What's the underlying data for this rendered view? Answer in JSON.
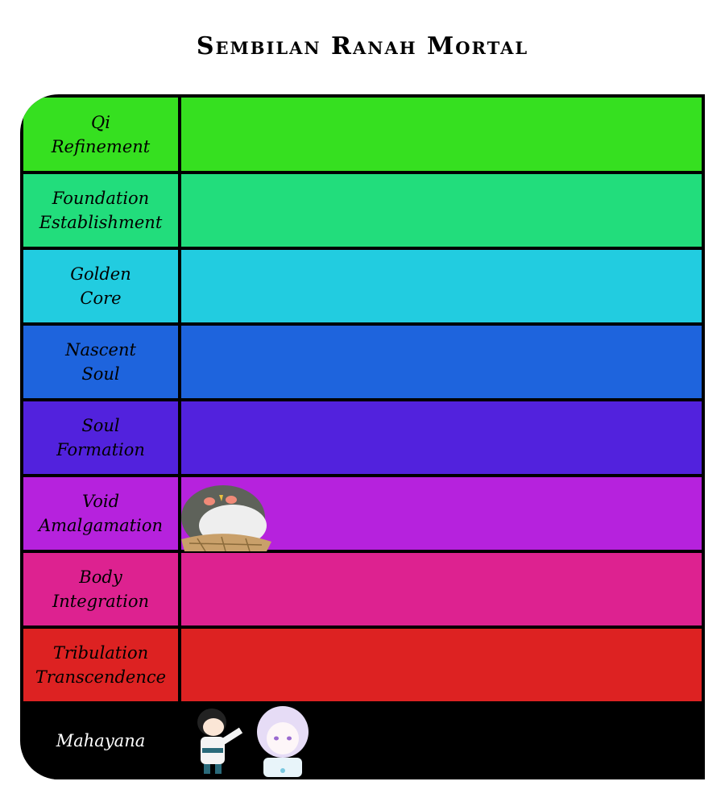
{
  "title": "Sembilan Ranah Mortal",
  "tiers": [
    {
      "label": "Qi\nRefinement",
      "color": "#36e020",
      "items": []
    },
    {
      "label": "Foundation\nEstablishment",
      "color": "#22dd7c",
      "items": []
    },
    {
      "label": "Golden\nCore",
      "color": "#22cce0",
      "items": []
    },
    {
      "label": "Nascent\nSoul",
      "color": "#1e64dd",
      "items": []
    },
    {
      "label": "Soul\nFormation",
      "color": "#5222dd",
      "items": []
    },
    {
      "label": "Void\nAmalgamation",
      "color": "#b622dd",
      "items": [
        "fat-bird-in-nest"
      ]
    },
    {
      "label": "Body\nIntegration",
      "color": "#dd2290",
      "items": []
    },
    {
      "label": "Tribulation\nTranscendence",
      "color": "#dd2222",
      "items": []
    },
    {
      "label": "Mahayana",
      "color": "#000000",
      "items": [
        "chibi-cultivator",
        "white-haired-girl"
      ]
    }
  ]
}
